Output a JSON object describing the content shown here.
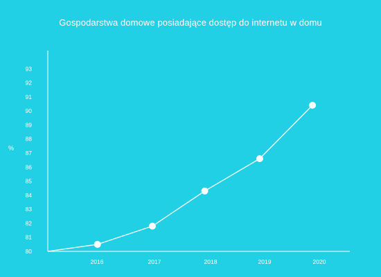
{
  "chart_data": {
    "type": "line",
    "title": "Gospodarstwa domowe posiadające dostęp do internetu w domu",
    "xlabel": "",
    "ylabel": "%",
    "x_ticks": [
      "2016",
      "2017",
      "2018",
      "2019",
      "2020"
    ],
    "y_ticks": [
      80,
      81,
      82,
      83,
      84,
      85,
      86,
      87,
      88,
      89,
      90,
      91,
      92,
      93
    ],
    "xlim": [
      2015.13,
      2020.4
    ],
    "ylim": [
      80,
      94
    ],
    "series": [
      {
        "points": [
          {
            "x": 2015.13,
            "y": 80.0,
            "marker": false
          },
          {
            "x": 2016.08,
            "y": 80.5,
            "marker": true
          },
          {
            "x": 2017.13,
            "y": 81.8,
            "marker": true
          },
          {
            "x": 2018.13,
            "y": 84.3,
            "marker": true
          },
          {
            "x": 2019.18,
            "y": 86.6,
            "marker": true
          },
          {
            "x": 2020.19,
            "y": 90.4,
            "marker": true
          }
        ]
      }
    ],
    "grid": false,
    "legend": "none",
    "colors": {
      "background": "#22d0e6",
      "line": "#ffffff",
      "marker": "#ffffff",
      "text": "#ffffff"
    }
  }
}
